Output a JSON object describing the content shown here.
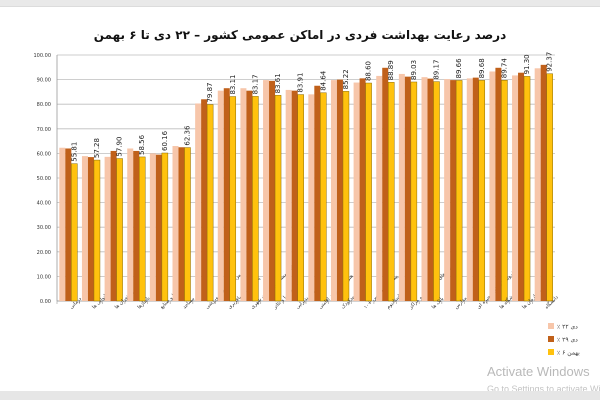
{
  "chart_data": {
    "type": "bar",
    "title": "درصد رعایت بهداشت فردی در اماکن عمومی کشور  – ۲۲ دی تا ۶ بهمن",
    "xlabel": "",
    "ylabel": "",
    "ylim": [
      0,
      100
    ],
    "yticks": [
      "0.00",
      "10.00",
      "20.00",
      "30.00",
      "40.00",
      "50.00",
      "60.00",
      "70.00",
      "80.00",
      "90.00",
      "100.00"
    ],
    "grid": true,
    "legend_placement": "right",
    "categories": [
      "مراکز درمانی",
      "نانوایی ها",
      "رستوران ها",
      "پاساژها",
      "کارگاه ها و صنایع",
      "مساجد",
      "مراکز تفریحی، ورزشی",
      "پایانه های مسافربری",
      "پایانه مسافربری درون شهری",
      "سالن سینما و تئاتر",
      "تالارهای پذیرایی",
      "هتل ها و مراکز اقامتی",
      "مهدکودک",
      "پیشخوان و پلیس +۱۰",
      "استادیوم",
      "استخرهای سرپوشیده و مراکز",
      "بانک ها",
      "مدارس",
      "فروشگاه های زنجیره ای",
      "فروشگاه ها",
      "ادارات و سازمان ها",
      "دانشگاه"
    ],
    "series": [
      {
        "name": "٪ ۲۲ دی",
        "color": "#F7C6AA",
        "values": [
          62.3,
          58.9,
          58.6,
          62.0,
          60.0,
          63.0,
          80.3,
          85.5,
          86.5,
          89.8,
          85.8,
          84.0,
          89.8,
          88.8,
          91.5,
          92.3,
          91.0,
          90.2,
          90.5,
          93.3,
          91.7,
          94.6
        ]
      },
      {
        "name": "٪ ۲۹ دی",
        "color": "#C0601A",
        "values": [
          62.0,
          58.5,
          61.0,
          61.0,
          59.5,
          62.5,
          82.0,
          86.5,
          85.5,
          89.5,
          85.5,
          87.5,
          90.0,
          90.5,
          94.8,
          91.2,
          90.4,
          89.8,
          90.8,
          94.8,
          92.8,
          96.0
        ]
      },
      {
        "name": "٪ ۶ بهمن",
        "color": "#FFC20E",
        "values": [
          55.81,
          57.28,
          57.9,
          58.56,
          60.16,
          62.36,
          79.87,
          83.11,
          83.17,
          83.61,
          83.91,
          84.64,
          85.22,
          88.6,
          88.89,
          89.03,
          89.17,
          89.66,
          89.68,
          89.74,
          91.3,
          92.37
        ],
        "labels": [
          "55.81",
          "57.28",
          "57.90",
          "58.56",
          "60.16",
          "62.36",
          "79.87",
          "83.11",
          "83.17",
          "83.61",
          "83.91",
          "84.64",
          "85.22",
          "88.60",
          "88.89",
          "89.03",
          "89.17",
          "89.66",
          "89.68",
          "89.74",
          "91.30",
          "92.37"
        ]
      }
    ]
  },
  "watermark": {
    "line1": "Activate Windows",
    "line2": "Go to Settings to activate Windows."
  }
}
